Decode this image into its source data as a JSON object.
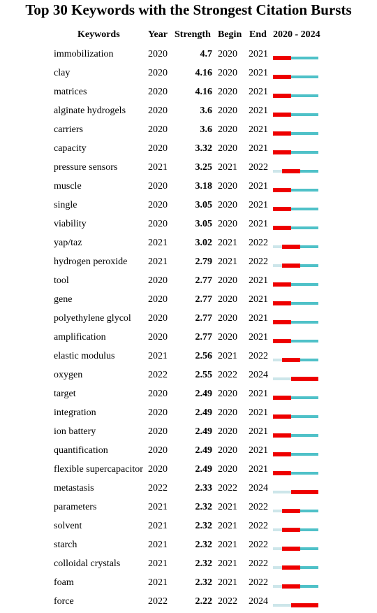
{
  "chart_data": {
    "type": "table",
    "title": "Top 30 Keywords with the Strongest Citation Bursts",
    "columns": [
      "Keywords",
      "Year",
      "Strength",
      "Begin",
      "End",
      "2020 - 2024"
    ],
    "range": [
      2020,
      2024
    ],
    "colors": {
      "burst": "#ee0000",
      "active": "#4fc1c8",
      "inactive": "#cde6ea"
    },
    "rows": [
      {
        "keyword": "immobilization",
        "year": "2020",
        "strength": "4.7",
        "begin": "2020",
        "end": "2021"
      },
      {
        "keyword": "clay",
        "year": "2020",
        "strength": "4.16",
        "begin": "2020",
        "end": "2021"
      },
      {
        "keyword": "matrices",
        "year": "2020",
        "strength": "4.16",
        "begin": "2020",
        "end": "2021"
      },
      {
        "keyword": "alginate hydrogels",
        "year": "2020",
        "strength": "3.6",
        "begin": "2020",
        "end": "2021"
      },
      {
        "keyword": "carriers",
        "year": "2020",
        "strength": "3.6",
        "begin": "2020",
        "end": "2021"
      },
      {
        "keyword": "capacity",
        "year": "2020",
        "strength": "3.32",
        "begin": "2020",
        "end": "2021"
      },
      {
        "keyword": "pressure sensors",
        "year": "2021",
        "strength": "3.25",
        "begin": "2021",
        "end": "2022"
      },
      {
        "keyword": "muscle",
        "year": "2020",
        "strength": "3.18",
        "begin": "2020",
        "end": "2021"
      },
      {
        "keyword": "single",
        "year": "2020",
        "strength": "3.05",
        "begin": "2020",
        "end": "2021"
      },
      {
        "keyword": "viability",
        "year": "2020",
        "strength": "3.05",
        "begin": "2020",
        "end": "2021"
      },
      {
        "keyword": "yap/taz",
        "year": "2021",
        "strength": "3.02",
        "begin": "2021",
        "end": "2022"
      },
      {
        "keyword": "hydrogen peroxide",
        "year": "2021",
        "strength": "2.79",
        "begin": "2021",
        "end": "2022"
      },
      {
        "keyword": "tool",
        "year": "2020",
        "strength": "2.77",
        "begin": "2020",
        "end": "2021"
      },
      {
        "keyword": "gene",
        "year": "2020",
        "strength": "2.77",
        "begin": "2020",
        "end": "2021"
      },
      {
        "keyword": "polyethylene glycol",
        "year": "2020",
        "strength": "2.77",
        "begin": "2020",
        "end": "2021"
      },
      {
        "keyword": "amplification",
        "year": "2020",
        "strength": "2.77",
        "begin": "2020",
        "end": "2021"
      },
      {
        "keyword": "elastic modulus",
        "year": "2021",
        "strength": "2.56",
        "begin": "2021",
        "end": "2022"
      },
      {
        "keyword": "oxygen",
        "year": "2022",
        "strength": "2.55",
        "begin": "2022",
        "end": "2024"
      },
      {
        "keyword": "target",
        "year": "2020",
        "strength": "2.49",
        "begin": "2020",
        "end": "2021"
      },
      {
        "keyword": "integration",
        "year": "2020",
        "strength": "2.49",
        "begin": "2020",
        "end": "2021"
      },
      {
        "keyword": "ion battery",
        "year": "2020",
        "strength": "2.49",
        "begin": "2020",
        "end": "2021"
      },
      {
        "keyword": "quantification",
        "year": "2020",
        "strength": "2.49",
        "begin": "2020",
        "end": "2021"
      },
      {
        "keyword": "flexible supercapacitor",
        "year": "2020",
        "strength": "2.49",
        "begin": "2020",
        "end": "2021"
      },
      {
        "keyword": "metastasis",
        "year": "2022",
        "strength": "2.33",
        "begin": "2022",
        "end": "2024"
      },
      {
        "keyword": "parameters",
        "year": "2021",
        "strength": "2.32",
        "begin": "2021",
        "end": "2022"
      },
      {
        "keyword": "solvent",
        "year": "2021",
        "strength": "2.32",
        "begin": "2021",
        "end": "2022"
      },
      {
        "keyword": "starch",
        "year": "2021",
        "strength": "2.32",
        "begin": "2021",
        "end": "2022"
      },
      {
        "keyword": "colloidal crystals",
        "year": "2021",
        "strength": "2.32",
        "begin": "2021",
        "end": "2022"
      },
      {
        "keyword": "foam",
        "year": "2021",
        "strength": "2.32",
        "begin": "2021",
        "end": "2022"
      },
      {
        "keyword": "force",
        "year": "2022",
        "strength": "2.22",
        "begin": "2022",
        "end": "2024"
      }
    ]
  }
}
